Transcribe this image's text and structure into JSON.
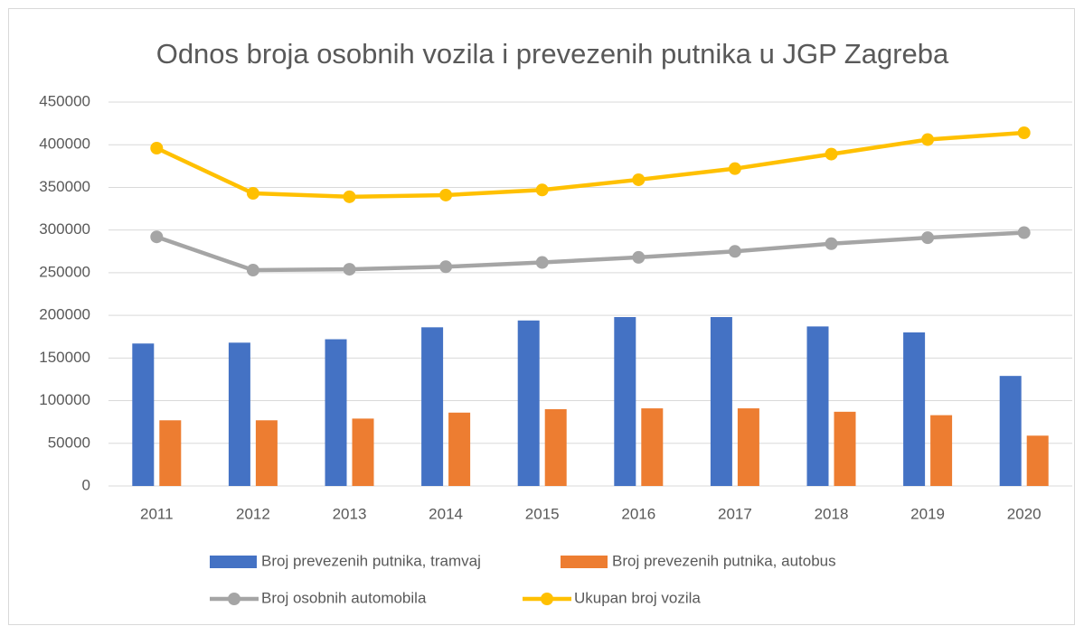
{
  "chart_data": {
    "type": "bar",
    "title": "Odnos broja osobnih vozila i prevezenih putnika u JGP Zagreba",
    "categories": [
      "2011",
      "2012",
      "2013",
      "2014",
      "2015",
      "2016",
      "2017",
      "2018",
      "2019",
      "2020"
    ],
    "series": [
      {
        "name": "Broj prevezenih putnika, tramvaj",
        "type": "bar",
        "color": "#4472c4",
        "values": [
          167000,
          168000,
          172000,
          186000,
          194000,
          198000,
          198000,
          187000,
          180000,
          129000
        ]
      },
      {
        "name": "Broj prevezenih putnika, autobus",
        "type": "bar",
        "color": "#ed7d31",
        "values": [
          77000,
          77000,
          79000,
          86000,
          90000,
          91000,
          91000,
          87000,
          83000,
          59000
        ]
      },
      {
        "name": "Broj osobnih automobila",
        "type": "line",
        "color": "#a5a5a5",
        "values": [
          292000,
          253000,
          254000,
          257000,
          262000,
          268000,
          275000,
          284000,
          291000,
          297000
        ]
      },
      {
        "name": "Ukupan broj vozila",
        "type": "line",
        "color": "#ffc000",
        "values": [
          396000,
          343000,
          339000,
          341000,
          347000,
          359000,
          372000,
          389000,
          406000,
          414000
        ]
      }
    ],
    "ylim": [
      0,
      450000
    ],
    "yticks": [
      0,
      50000,
      100000,
      150000,
      200000,
      250000,
      300000,
      350000,
      400000,
      450000
    ],
    "grid": true,
    "legend": "bottom"
  }
}
